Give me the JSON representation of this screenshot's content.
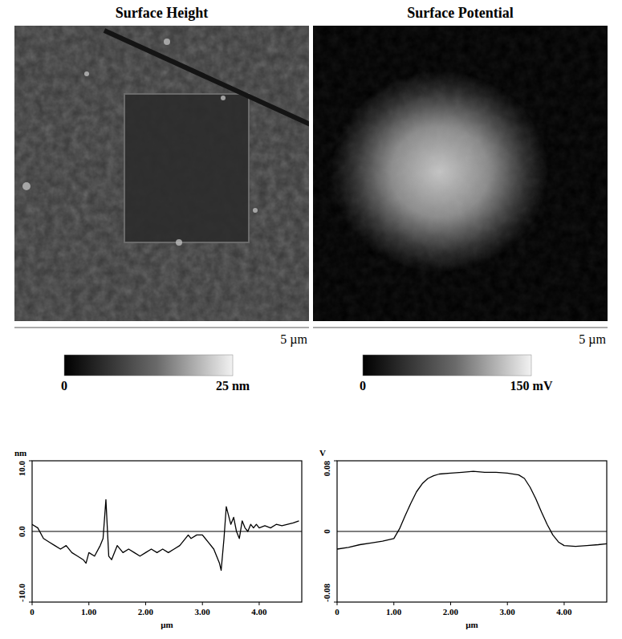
{
  "chart_data": [
    {
      "type": "image",
      "title": "Surface Height",
      "scale_label": "5 µm",
      "colorbar_range": [
        0,
        25
      ],
      "colorbar_ticks": [
        0,
        {
          "value": 25,
          "label": "25 nm"
        }
      ]
    },
    {
      "type": "image",
      "title": "Surface Potential",
      "scale_label": "5 µm",
      "colorbar_range": [
        0,
        150
      ],
      "colorbar_ticks": [
        0,
        {
          "value": 150,
          "label": "150 mV"
        }
      ]
    },
    {
      "type": "line",
      "x_label": "µm",
      "y_label": "nm",
      "color": "#000000",
      "x": [
        0,
        0.1,
        0.2,
        0.3,
        0.4,
        0.5,
        0.6,
        0.7,
        0.8,
        0.9,
        0.95,
        1.0,
        1.1,
        1.2,
        1.25,
        1.3,
        1.35,
        1.4,
        1.5,
        1.6,
        1.7,
        1.8,
        1.9,
        2.0,
        2.1,
        2.2,
        2.3,
        2.4,
        2.5,
        2.6,
        2.7,
        2.75,
        2.8,
        2.9,
        3.0,
        3.1,
        3.2,
        3.25,
        3.3,
        3.33,
        3.38,
        3.42,
        3.5,
        3.55,
        3.6,
        3.65,
        3.7,
        3.75,
        3.8,
        3.85,
        3.9,
        3.95,
        4.0,
        4.1,
        4.2,
        4.3,
        4.4,
        4.5,
        4.6,
        4.7
      ],
      "values": [
        1,
        0.5,
        -1,
        -1.5,
        -2,
        -2.5,
        -2,
        -3,
        -3.5,
        -4,
        -4.5,
        -3,
        -3.5,
        -2,
        -1,
        4.5,
        -3.5,
        -4,
        -2,
        -3,
        -2.5,
        -3,
        -3.5,
        -3,
        -2.5,
        -3,
        -2.5,
        -3,
        -2.5,
        -2,
        -1,
        -0.5,
        -1,
        -0.5,
        -0.5,
        -1.5,
        -2.5,
        -3.5,
        -4.5,
        -5.5,
        -1,
        3.5,
        1,
        2,
        0,
        -1,
        1.5,
        0.5,
        0,
        1,
        0.5,
        1,
        0.5,
        0.8,
        0.5,
        1,
        0.8,
        1,
        1.2,
        1.5
      ],
      "xlim": [
        0,
        4.75
      ],
      "xticks": [
        0,
        {
          "value": 1,
          "label": "1.00"
        },
        {
          "value": 2,
          "label": "2.00"
        },
        {
          "value": 3,
          "label": "3.00"
        },
        {
          "value": 4,
          "label": "4.00"
        }
      ],
      "ylim": [
        -10,
        10
      ],
      "yticks": [
        {
          "value": -10,
          "label": "-10.0"
        },
        {
          "value": 0,
          "label": "0.0"
        },
        {
          "value": 10,
          "label": "10.0"
        }
      ]
    },
    {
      "type": "line",
      "x_label": "µm",
      "y_label": "V",
      "color": "#000000",
      "x": [
        0,
        0.2,
        0.4,
        0.6,
        0.8,
        1.0,
        1.1,
        1.2,
        1.3,
        1.4,
        1.5,
        1.6,
        1.7,
        1.8,
        2.0,
        2.2,
        2.4,
        2.6,
        2.8,
        3.0,
        3.2,
        3.3,
        3.4,
        3.5,
        3.6,
        3.7,
        3.8,
        3.9,
        4.0,
        4.2,
        4.4,
        4.6,
        4.75
      ],
      "values": [
        -0.02,
        -0.018,
        -0.015,
        -0.013,
        -0.011,
        -0.008,
        0.003,
        0.018,
        0.032,
        0.045,
        0.054,
        0.06,
        0.063,
        0.065,
        0.066,
        0.067,
        0.068,
        0.067,
        0.067,
        0.066,
        0.064,
        0.06,
        0.05,
        0.037,
        0.022,
        0.008,
        -0.004,
        -0.012,
        -0.016,
        -0.017,
        -0.016,
        -0.015,
        -0.014
      ],
      "xlim": [
        0,
        4.75
      ],
      "xticks": [
        0,
        {
          "value": 1,
          "label": "1.00"
        },
        {
          "value": 2,
          "label": "2.00"
        },
        {
          "value": 3,
          "label": "3.00"
        },
        {
          "value": 4,
          "label": "4.00"
        }
      ],
      "ylim": [
        -0.08,
        0.08
      ],
      "yticks": [
        -0.08,
        0,
        0.08
      ]
    }
  ]
}
